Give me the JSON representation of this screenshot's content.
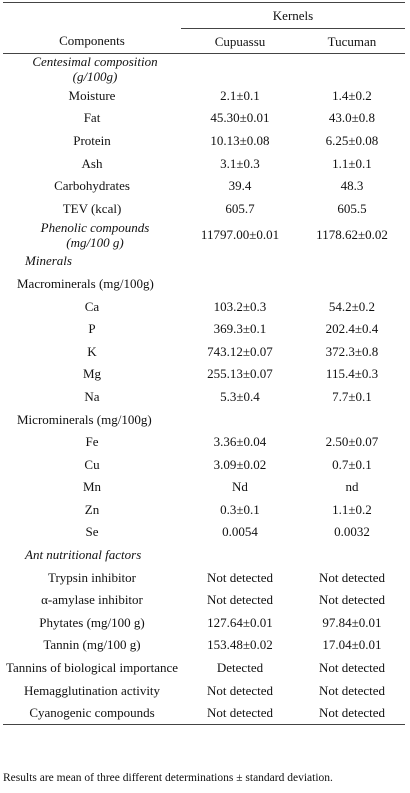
{
  "header": {
    "group": "Kernels",
    "columns": [
      "Components",
      "Cupuassu",
      "Tucuman"
    ]
  },
  "table": {
    "rows": [
      {
        "section": "Centesimal composition (g/100g)"
      },
      {
        "label": "Moisture",
        "values": [
          "2.1±0.1",
          "1.4±0.2"
        ]
      },
      {
        "label": "Fat",
        "values": [
          "45.30±0.01",
          "43.0±0.8"
        ]
      },
      {
        "label": "Protein",
        "values": [
          "10.13±0.08",
          "6.25±0.08"
        ]
      },
      {
        "label": "Ash",
        "values": [
          "3.1±0.3",
          "1.1±0.1"
        ]
      },
      {
        "label": "Carbohydrates",
        "values": [
          "39.4",
          "48.3"
        ]
      },
      {
        "label": "TEV (kcal)",
        "values": [
          "605.7",
          "605.5"
        ]
      },
      {
        "section": "Phenolic compounds (mg/100 g)",
        "values": [
          "11797.00±0.01",
          "1178.62±0.02"
        ]
      },
      {
        "section": "Minerals"
      },
      {
        "group": "Macrominerals (mg/100g)"
      },
      {
        "label": "Ca",
        "values": [
          "103.2±0.3",
          "54.2±0.2"
        ]
      },
      {
        "label": "P",
        "values": [
          "369.3±0.1",
          "202.4±0.4"
        ]
      },
      {
        "label": "K",
        "values": [
          "743.12±0.07",
          "372.3±0.8"
        ]
      },
      {
        "label": "Mg",
        "values": [
          "255.13±0.07",
          "115.4±0.3"
        ]
      },
      {
        "label": "Na",
        "values": [
          "5.3±0.4",
          "7.7±0.1"
        ]
      },
      {
        "group": "Microminerals (mg/100g)"
      },
      {
        "label": "Fe",
        "values": [
          "3.36±0.04",
          "2.50±0.07"
        ]
      },
      {
        "label": "Cu",
        "values": [
          "3.09±0.02",
          "0.7±0.1"
        ]
      },
      {
        "label": "Mn",
        "values": [
          "Nd",
          "nd"
        ]
      },
      {
        "label": "Zn",
        "values": [
          "0.3±0.1",
          "1.1±0.2"
        ]
      },
      {
        "label": "Se",
        "values": [
          "0.0054",
          "0.0032"
        ]
      },
      {
        "section": "Ant nutritional factors"
      },
      {
        "label": "Trypsin inhibitor",
        "values": [
          "Not detected",
          "Not detected"
        ]
      },
      {
        "label": "α-amylase inhibitor",
        "values": [
          "Not detected",
          "Not detected"
        ]
      },
      {
        "label": "Phytates (mg/100 g)",
        "values": [
          "127.64±0.01",
          "97.84±0.01"
        ]
      },
      {
        "label": "Tannin (mg/100 g)",
        "values": [
          "153.48±0.02",
          "17.04±0.01"
        ]
      },
      {
        "label": "Tannins of biological importance",
        "values": [
          "Detected",
          "Not detected"
        ]
      },
      {
        "label": "Hemagglutination activity",
        "values": [
          "Not detected",
          "Not detected"
        ]
      },
      {
        "label": "Cyanogenic compounds",
        "values": [
          "Not detected",
          "Not detected"
        ]
      }
    ]
  },
  "footnote": "Results are mean of three different determinations ± standard deviation."
}
